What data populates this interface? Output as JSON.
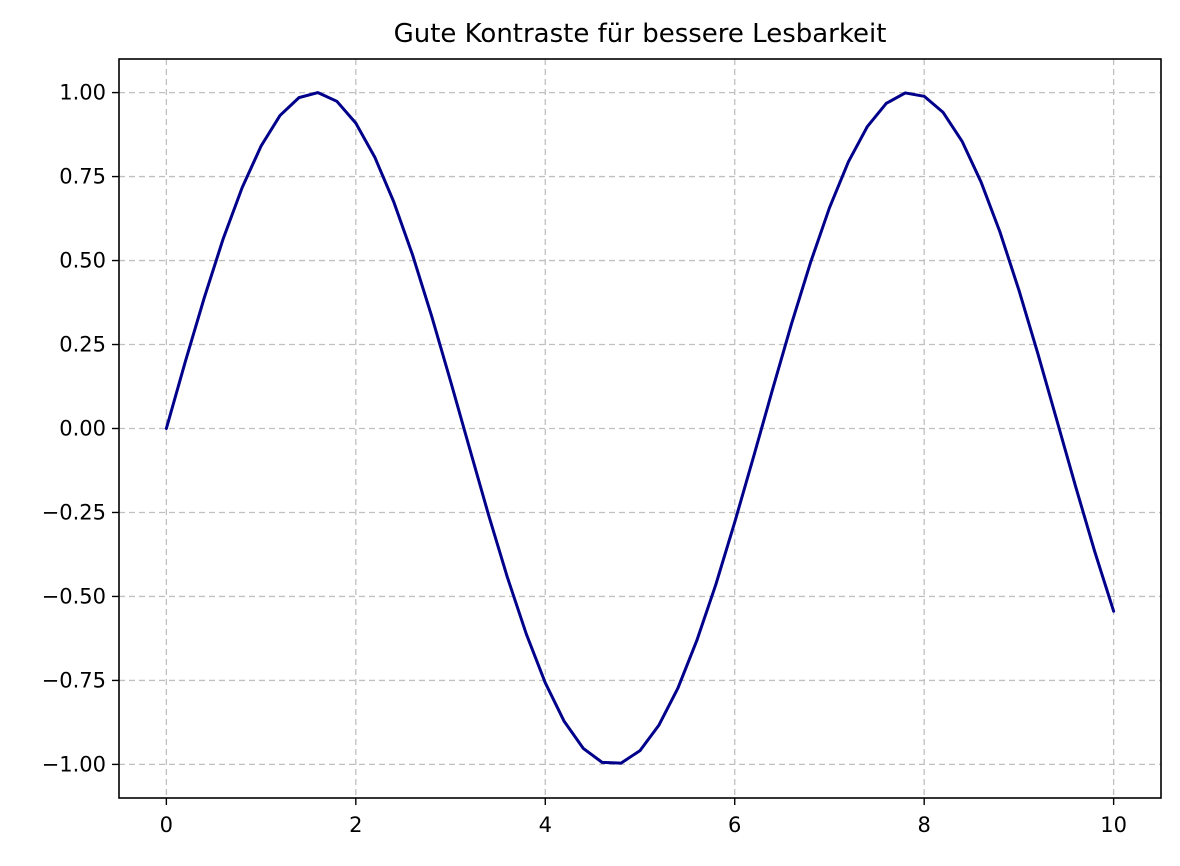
{
  "chart_data": {
    "type": "line",
    "title": "Gute Kontraste für bessere Lesbarkeit",
    "xlabel": "",
    "ylabel": "",
    "xlim": [
      -0.5,
      10.5
    ],
    "ylim": [
      -1.1,
      1.1
    ],
    "grid": true,
    "x_ticks": [
      0,
      2,
      4,
      6,
      8,
      10
    ],
    "x_tick_labels": [
      "0",
      "2",
      "4",
      "6",
      "8",
      "10"
    ],
    "y_ticks": [
      1.0,
      0.75,
      0.5,
      0.25,
      0.0,
      -0.25,
      -0.5,
      -0.75,
      -1.0
    ],
    "y_tick_labels": [
      "1.00",
      "0.75",
      "0.50",
      "0.25",
      "0.00",
      "−0.25",
      "−0.50",
      "−0.75",
      "−1.00"
    ],
    "series": [
      {
        "color": "#00008b",
        "x": [
          0,
          0.2,
          0.4,
          0.6,
          0.8,
          1.0,
          1.2,
          1.4,
          1.6,
          1.8,
          2.0,
          2.2,
          2.4,
          2.6,
          2.8,
          3.0,
          3.2,
          3.4,
          3.6,
          3.8,
          4.0,
          4.2,
          4.4,
          4.6,
          4.8,
          5.0,
          5.2,
          5.4,
          5.6,
          5.8,
          6.0,
          6.2,
          6.4,
          6.6,
          6.8,
          7.0,
          7.2,
          7.4,
          7.6,
          7.8,
          8.0,
          8.2,
          8.4,
          8.6,
          8.8,
          9.0,
          9.2,
          9.4,
          9.6,
          9.8,
          10.0
        ],
        "values": [
          0.0,
          0.199,
          0.389,
          0.565,
          0.717,
          0.841,
          0.932,
          0.985,
          1.0,
          0.974,
          0.909,
          0.808,
          0.675,
          0.516,
          0.335,
          0.141,
          -0.058,
          -0.256,
          -0.443,
          -0.612,
          -0.757,
          -0.872,
          -0.952,
          -0.994,
          -0.996,
          -0.959,
          -0.883,
          -0.773,
          -0.631,
          -0.465,
          -0.279,
          -0.083,
          0.117,
          0.312,
          0.494,
          0.657,
          0.794,
          0.899,
          0.968,
          0.999,
          0.989,
          0.941,
          0.855,
          0.734,
          0.585,
          0.412,
          0.223,
          0.025,
          -0.174,
          -0.366,
          -0.544
        ]
      }
    ]
  },
  "colors": {
    "line": "#00008b",
    "grid": "#c0c0c0",
    "axes": "#000000",
    "background": "#ffffff"
  }
}
